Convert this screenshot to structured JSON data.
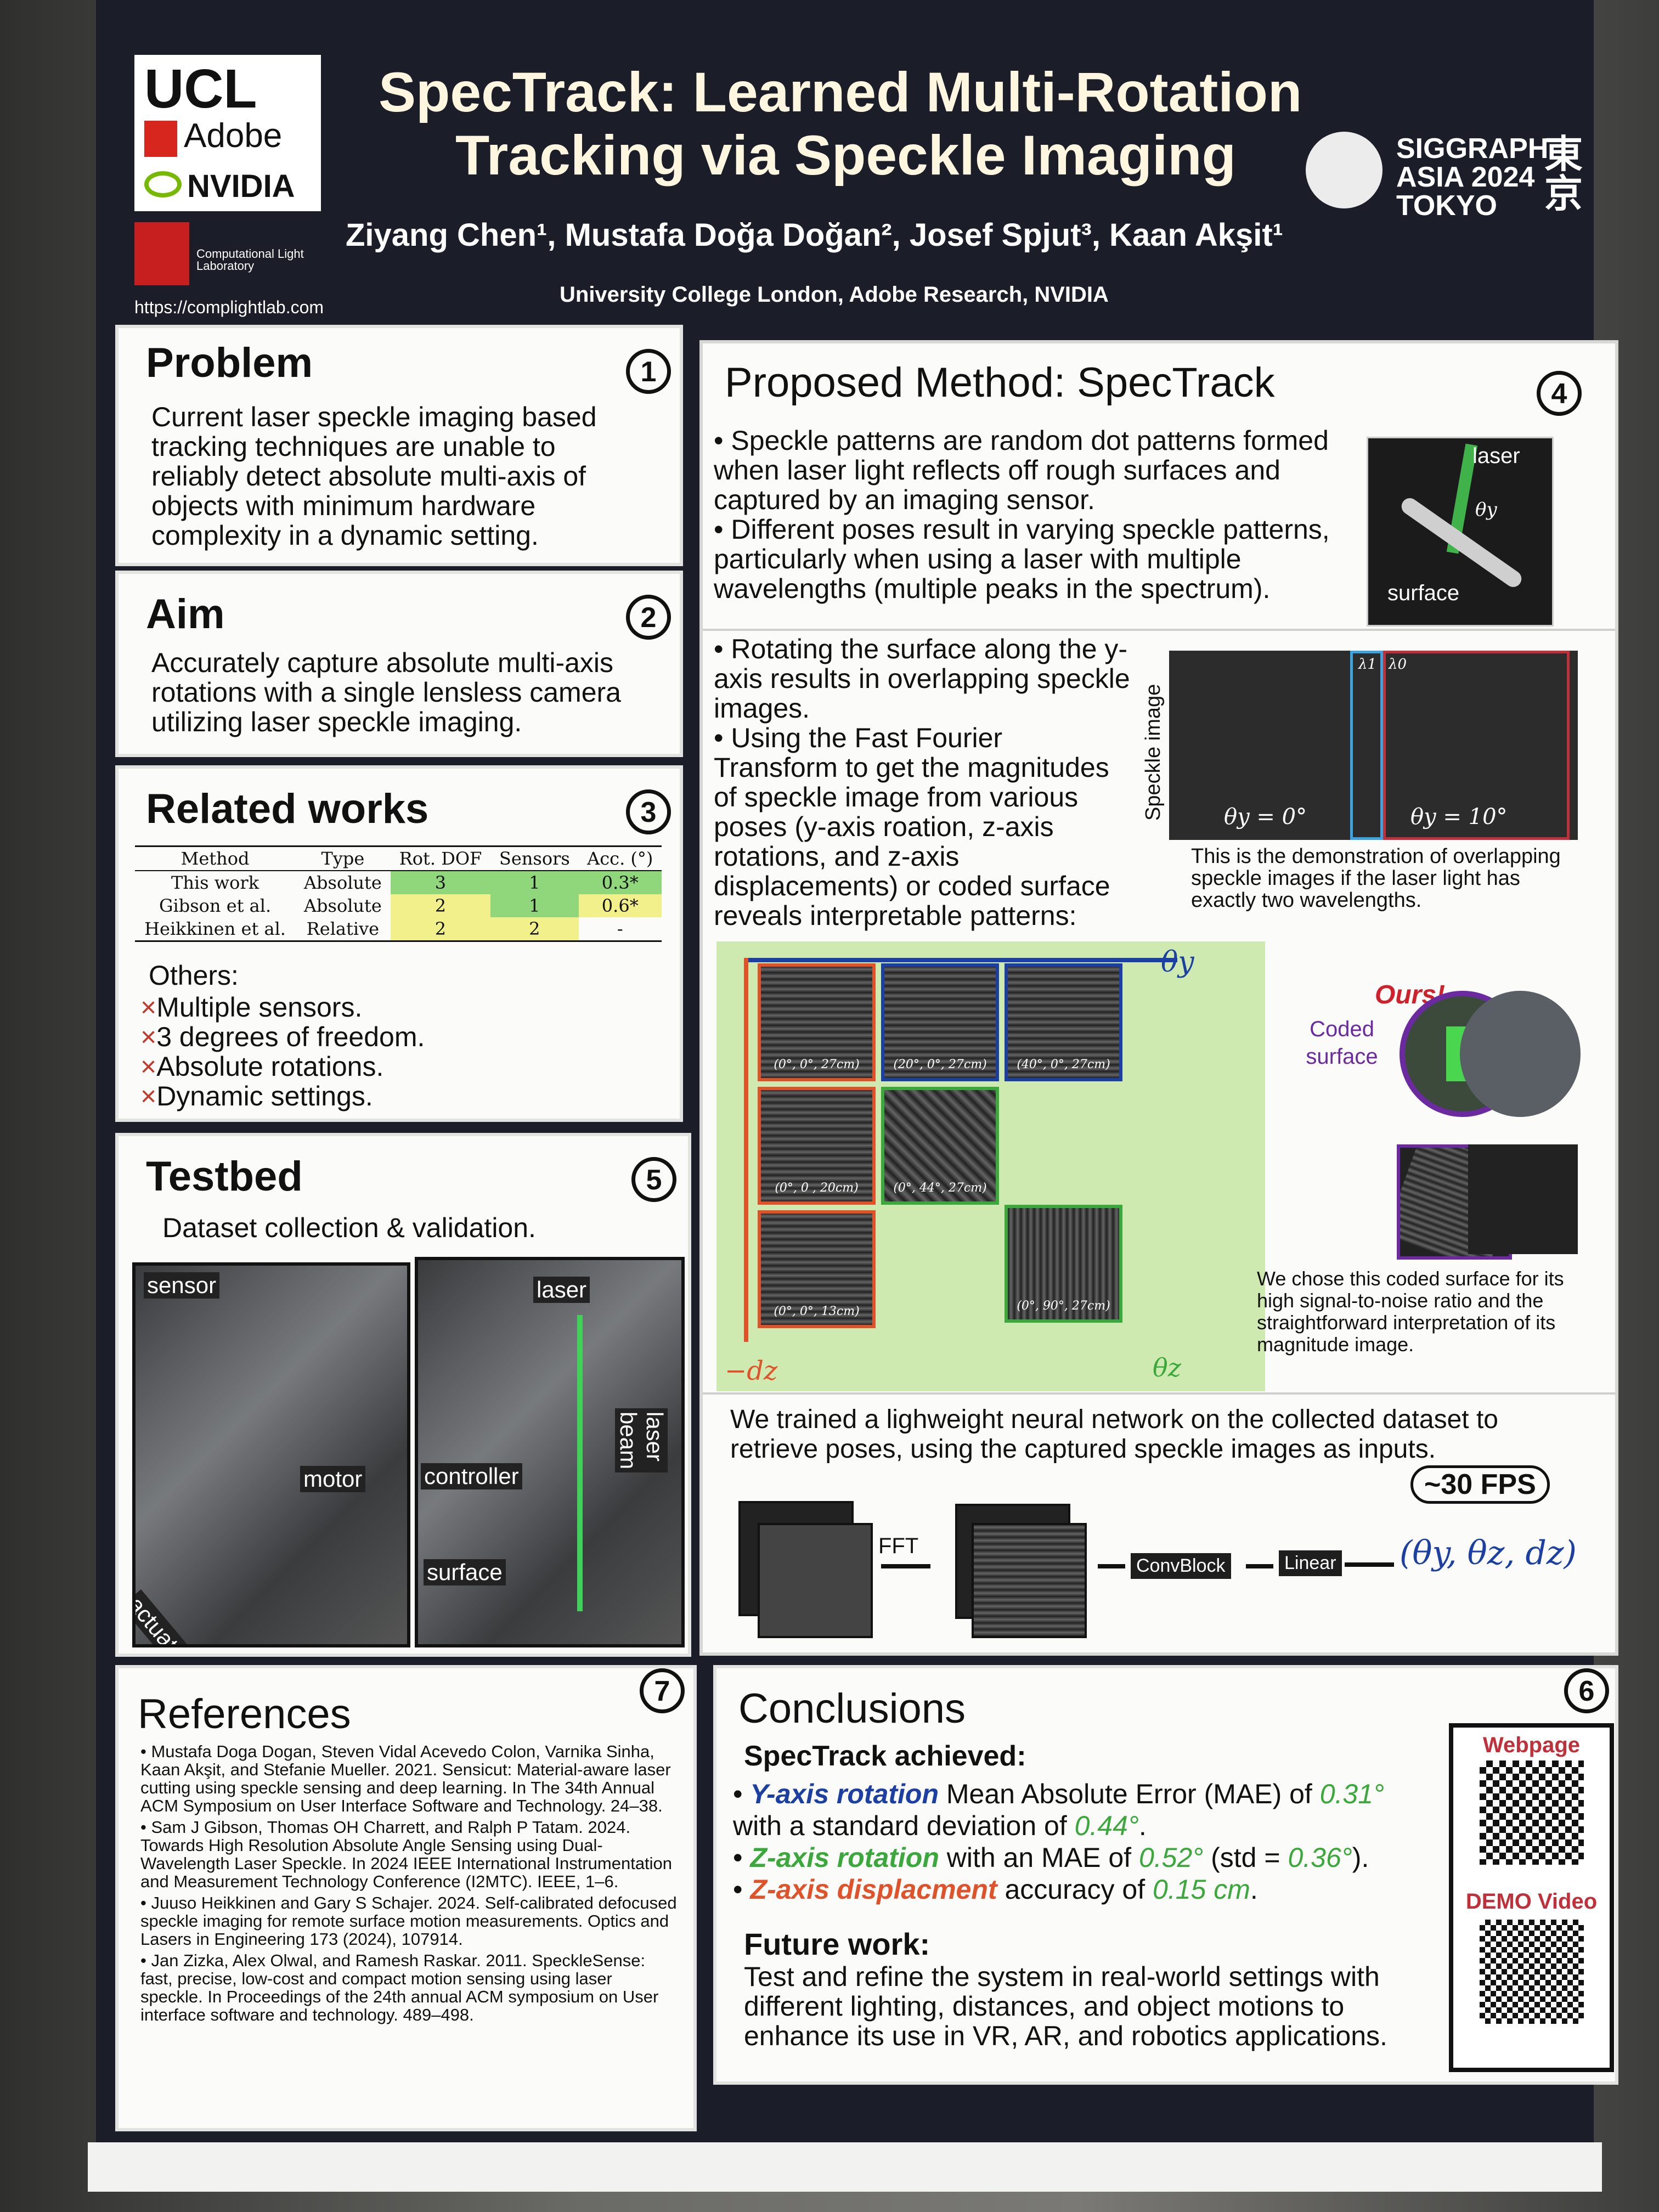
{
  "logos": {
    "ucl": "UCL",
    "adobe": "Adobe",
    "nvidia": "NVIDIA",
    "lab_line1": "Computational Light",
    "lab_line2": "Laboratory",
    "lab_url": "https://complightlab.com"
  },
  "header": {
    "title_line1": "SpecTrack: Learned Multi-Rotation",
    "title_line2": "Tracking via Speckle Imaging",
    "authors": "Ziyang Chen¹, Mustafa Doğa Doğan², Josef Spjut³, Kaan Akşit¹",
    "affiliations": "University College London, Adobe Research, NVIDIA",
    "siggraph_line1": "SIGGRAPH",
    "siggraph_line2": "ASIA 2024",
    "siggraph_line3": "TOKYO",
    "tokyo_kanji": "東京"
  },
  "problem": {
    "num": "1",
    "title": "Problem",
    "text": "Current laser speckle imaging based tracking techniques are unable to reliably detect absolute multi-axis of objects with minimum hardware complexity in a dynamic setting."
  },
  "aim": {
    "num": "2",
    "title": "Aim",
    "text": "Accurately capture absolute multi-axis rotations with a single lensless camera utilizing laser speckle imaging."
  },
  "related": {
    "num": "3",
    "title": "Related works",
    "headers": [
      "Method",
      "Type",
      "Rot. DOF",
      "Sensors",
      "Acc. (°)"
    ],
    "rows": [
      [
        "This work",
        "Absolute",
        "3",
        "1",
        "0.3*"
      ],
      [
        "Gibson et al.",
        "Absolute",
        "2",
        "1",
        "0.6*"
      ],
      [
        "Heikkinen et al.",
        "Relative",
        "2",
        "2",
        "-"
      ]
    ],
    "others_title": "Others:",
    "others": [
      "Multiple sensors.",
      "3 degrees of freedom.",
      "Absolute rotations.",
      "Dynamic settings."
    ],
    "cross": "×"
  },
  "testbed": {
    "num": "5",
    "title": "Testbed",
    "subtitle": "Dataset collection & validation.",
    "labels": {
      "sensor": "sensor",
      "motor": "motor",
      "actuator": "actuator",
      "laser": "laser",
      "controller": "controller",
      "surface": "surface",
      "beam": "laser beam"
    }
  },
  "method": {
    "num": "4",
    "title": "Proposed Method: SpecTrack",
    "b1": "Speckle patterns are random dot patterns formed when laser light reflects off rough surfaces and captured by an imaging sensor.",
    "b2": "Different poses result in varying speckle patterns, particularly when using a laser with multiple wavelengths (multiple peaks in the spectrum).",
    "diagram_laser": "laser",
    "diagram_surface": "surface",
    "diagram_angle": "θy",
    "b3": "Rotating the surface along the y-axis results in overlapping speckle images.",
    "b4": "Using the Fast Fourier Transform to get the magnitudes of speckle image from various poses (y-axis roation, z-axis rotations, and z-axis displacements) or coded surface reveals interpretable patterns:",
    "speckle_label": "Speckle image",
    "lambda1": "λ1",
    "lambda0": "λ0",
    "theta0": "θy = 0°",
    "theta10": "θy = 10°",
    "demo_caption": "This is the demonstration of overlapping speckle images if the laser light has exactly two wavelengths.",
    "axis_thy": "θy",
    "axis_dz": "−dz",
    "axis_thz": "θz",
    "thumbs": [
      "(0°, 0°, 27cm)",
      "(20°, 0°, 27cm)",
      "(40°, 0°, 27cm)",
      "(0°, 0 , 20cm)",
      "(0°, 44°, 27cm)",
      "(0°, 0°, 13cm)",
      "(0°, 90°, 27cm)"
    ],
    "coded": "Coded surface",
    "ours": "Ours!",
    "coded_caption": "We chose this coded surface for its high signal-to-noise ratio and the straightforward interpretation of its magnitude image.",
    "nn_text": "We trained a lighweight neural network on the collected dataset to retrieve poses, using the captured speckle images as inputs.",
    "fps": "~30 FPS",
    "fft": "FFT",
    "convblock": "ConvBlock",
    "linear": "Linear",
    "output": "(θy, θz, dz)"
  },
  "references": {
    "num": "7",
    "title": "References",
    "items": [
      "Mustafa Doga Dogan, Steven Vidal Acevedo Colon, Varnika Sinha, Kaan Akşit, and Stefanie Mueller. 2021. Sensicut: Material-aware laser cutting using speckle sensing and deep learning. In The 34th Annual ACM Symposium on User Interface Software and Technology. 24–38.",
      "Sam J Gibson, Thomas OH Charrett, and Ralph P Tatam. 2024. Towards High Resolution Absolute Angle Sensing using Dual-Wavelength Laser Speckle. In 2024 IEEE International Instrumentation and Measurement Technology Conference (I2MTC). IEEE, 1–6.",
      "Juuso Heikkinen and Gary S Schajer. 2024. Self-calibrated defocused speckle imaging for remote surface motion measurements. Optics and Lasers in Engineering 173 (2024), 107914.",
      "Jan Zizka, Alex Olwal, and Ramesh Raskar. 2011. SpeckleSense: fast, precise, low-cost and compact motion sensing using laser speckle. In Proceedings of the 24th annual ACM symposium on User interface software and technology. 489–498."
    ]
  },
  "conclusions": {
    "num": "6",
    "title": "Conclusions",
    "achieved": "SpecTrack achieved:",
    "c1_label": "Y-axis rotation",
    "c1_a": " Mean Absolute Error (MAE) of ",
    "c1_v": "0.31°",
    "c1_b": " with a standard deviation of ",
    "c1_v2": "0.44°",
    "c2_label": "Z-axis rotation",
    "c2_a": "  with an MAE of ",
    "c2_v": "0.52°",
    "c2_b": " (std = ",
    "c2_v2": "0.36°",
    "c2_c": ").",
    "c3_label": "Z-axis displacment",
    "c3_a": " accuracy of ",
    "c3_v": "0.15 cm",
    "future_title": "Future work:",
    "future": "Test and refine the system in real-world settings with different lighting, distances, and object motions to enhance its use in VR, AR, and robotics applications.",
    "webpage": "Webpage",
    "demo": "DEMO Video"
  },
  "colors": {
    "poster_bg": "#1b1d29",
    "yaxis": "#1c3fa3",
    "zaxis": "#3aa83a",
    "zdisp": "#e0532a",
    "coded": "#6b2aa0",
    "green_bg": "#cfeab0"
  }
}
